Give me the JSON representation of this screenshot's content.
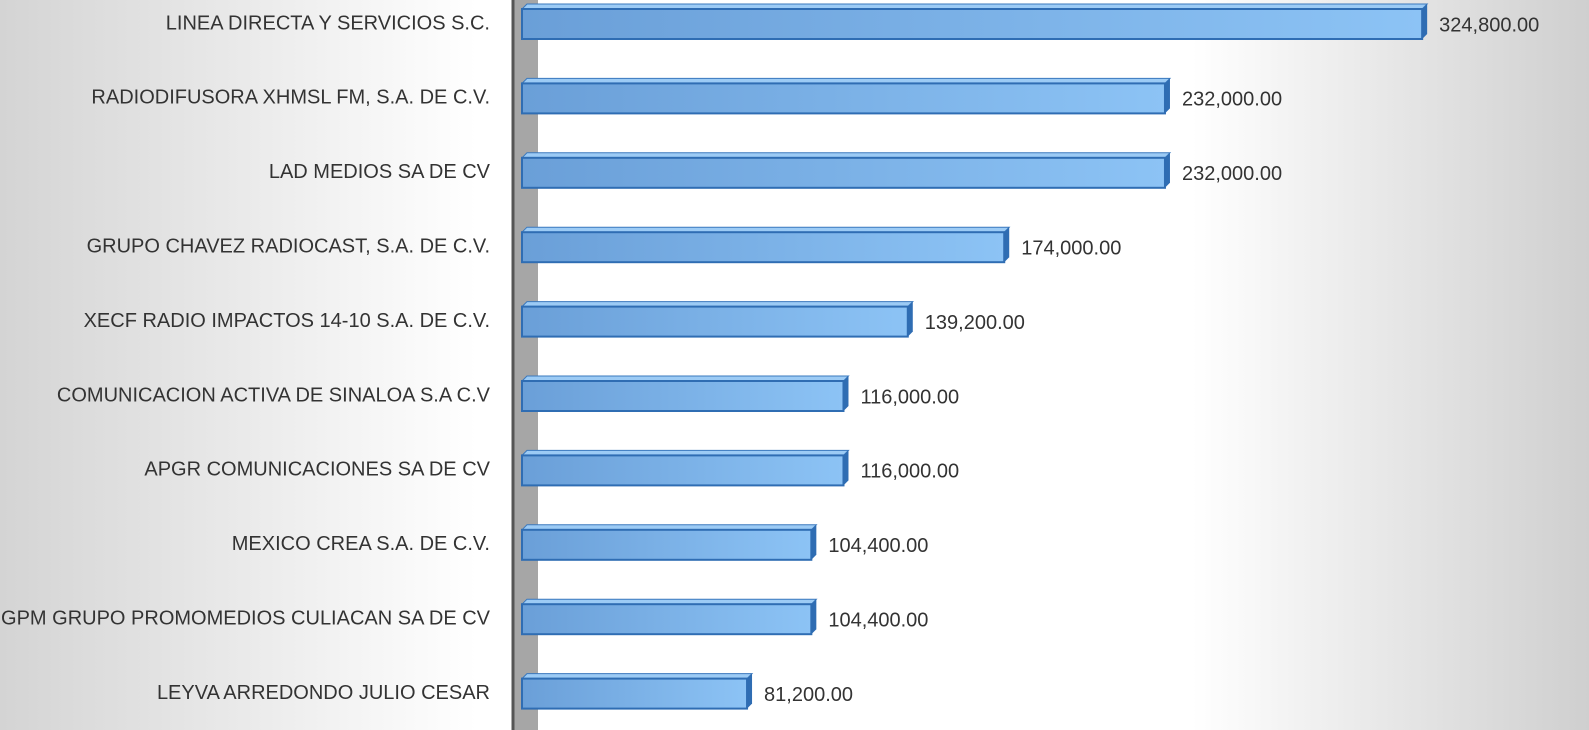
{
  "chart_data": {
    "type": "bar",
    "orientation": "horizontal",
    "categories": [
      "LINEA DIRECTA Y SERVICIOS S.C.",
      "RADIODIFUSORA XHMSL FM, S.A. DE C.V.",
      "LAD MEDIOS SA DE CV",
      "GRUPO CHAVEZ RADIOCAST, S.A. DE C.V.",
      "XECF RADIO IMPACTOS 14-10 S.A. DE C.V.",
      "COMUNICACION ACTIVA DE SINALOA S.A C.V",
      "APGR COMUNICACIONES SA DE CV",
      "MEXICO CREA S.A. DE C.V.",
      "GPM GRUPO PROMOMEDIOS CULIACAN SA DE CV",
      "LEYVA ARREDONDO JULIO CESAR"
    ],
    "values": [
      324800,
      232000,
      232000,
      174000,
      139200,
      116000,
      116000,
      104400,
      104400,
      81200
    ],
    "value_labels": [
      "324,800.00",
      "232,000.00",
      "232,000.00",
      "174,000.00",
      "139,200.00",
      "116,000.00",
      "116,000.00",
      "104,400.00",
      "104,400.00",
      "81,200.00"
    ],
    "color": "#6fa8e0",
    "xlim": [
      0,
      350000
    ]
  }
}
